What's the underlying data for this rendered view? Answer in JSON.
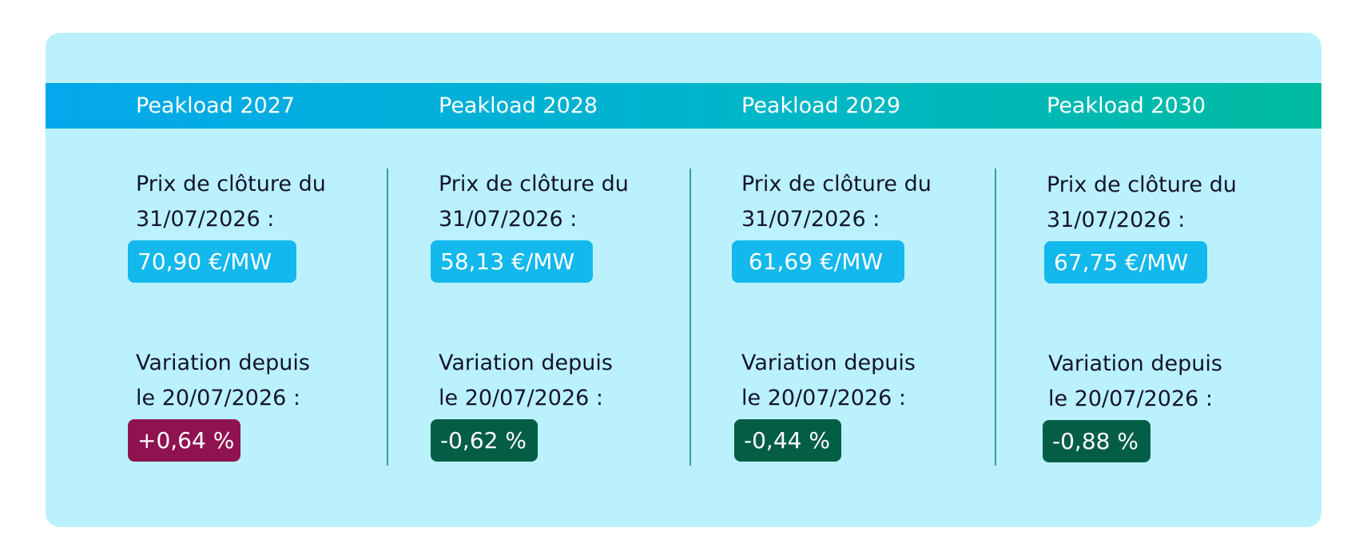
{
  "columns": [
    {
      "title": "Peakload 2027",
      "price_label_line1": "Prix de clôture du",
      "price_label_line2": "31/07/2026 :",
      "price_value": "70,90 €/MW",
      "variation_label_line1": "Variation depuis",
      "variation_label_line2": "le 20/07/2026 :",
      "variation_value": "+0,64 %"
    },
    {
      "title": "Peakload 2028",
      "price_label_line1": "Prix de clôture du",
      "price_label_line2": "31/07/2026 :",
      "price_value": "58,13 €/MW",
      "variation_label_line1": "Variation depuis",
      "variation_label_line2": "le 20/07/2026 :",
      "variation_value": "-0,62 %"
    },
    {
      "title": "Peakload 2029",
      "price_label_line1": "Prix de clôture du",
      "price_label_line2": "31/07/2026 :",
      "price_value": " 61,69 €/MW",
      "variation_label_line1": "Variation depuis",
      "variation_label_line2": "le 20/07/2026 :",
      "variation_value": "-0,44 %"
    },
    {
      "title": "Peakload 2030",
      "price_label_line1": "Prix de clôture du",
      "price_label_line2": "31/07/2026 :",
      "price_value": "67,75 €/MW",
      "variation_label_line1": "Variation depuis",
      "variation_label_line2": "le 20/07/2026 :",
      "variation_value": "-0,88 %"
    }
  ],
  "colors": {
    "card_background": "#baf1fd",
    "header_gradient_start": "#04a8ec",
    "header_gradient_end": "#00bba0",
    "price_pill": "#13b8ec",
    "variation_positive": "#8f1350",
    "variation_negative": "#035e45"
  }
}
